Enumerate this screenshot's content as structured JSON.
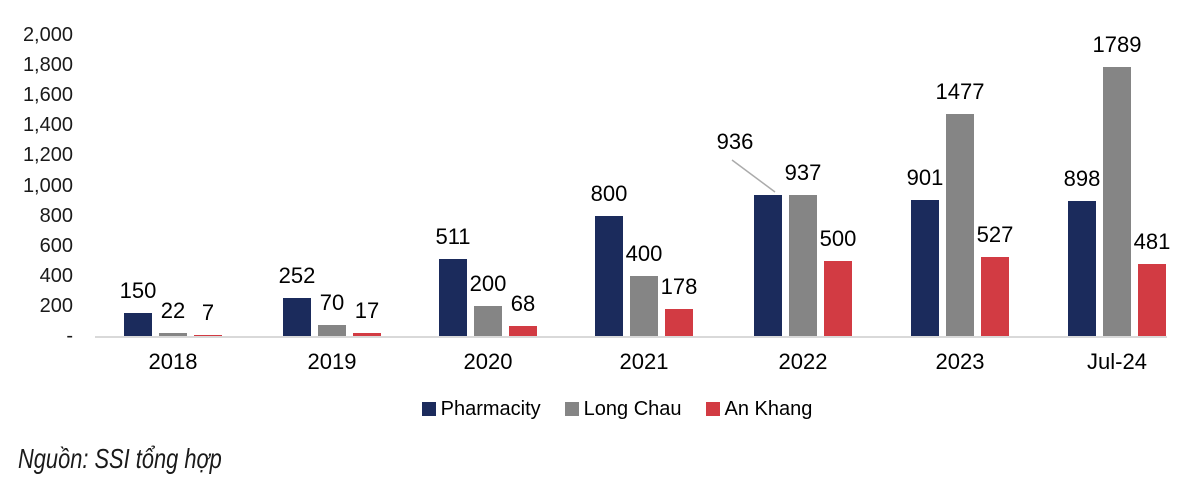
{
  "source": "Nguồn: SSI tổng hợp",
  "colors": {
    "pharmacity": "#1b2b5c",
    "long_chau": "#858585",
    "an_khang": "#d23b43",
    "axis_line": "#d9d9d9",
    "leader_line": "#ababab",
    "text": "#1a1a1a"
  },
  "chart_data": {
    "type": "bar",
    "title": "",
    "xlabel": "",
    "ylabel": "",
    "categories": [
      "2018",
      "2019",
      "2020",
      "2021",
      "2022",
      "2023",
      "Jul-24"
    ],
    "series": [
      {
        "name": "Pharmacity",
        "color": "#1b2b5c",
        "values": [
          150,
          252,
          511,
          800,
          936,
          901,
          898
        ]
      },
      {
        "name": "Long Chau",
        "color": "#858585",
        "values": [
          22,
          70,
          200,
          400,
          937,
          1477,
          1789
        ]
      },
      {
        "name": "An Khang",
        "color": "#d23b43",
        "values": [
          7,
          17,
          68,
          178,
          500,
          527,
          481
        ]
      }
    ],
    "ylim": [
      0,
      2000
    ],
    "ytick_step": 200,
    "ytick_labels": [
      "2,000",
      "1,800",
      "1,600",
      "1,400",
      "1,200",
      "1,000",
      "800",
      "600",
      "400",
      "200",
      "-"
    ],
    "grid": false,
    "legend_position": "bottom",
    "value_labels": "above-bars",
    "annotations": [
      {
        "text": "936",
        "series": "Pharmacity",
        "category": "2022",
        "style": "offset-label-with-leader-line"
      }
    ]
  }
}
